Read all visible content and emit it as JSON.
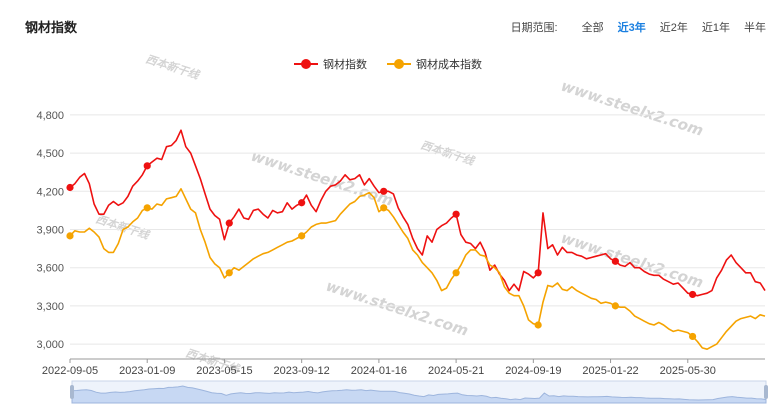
{
  "header": {
    "title": "钢材指数",
    "range_label": "日期范围:",
    "range_options": [
      "全部",
      "近3年",
      "近2年",
      "近1年",
      "半年"
    ],
    "active_range": "近3年"
  },
  "watermarks": {
    "site": "www.steelx2.com",
    "brand": "西本新干线"
  },
  "chart_data": {
    "type": "line",
    "xlabels": [
      "2022-09-05",
      "2023-01-09",
      "2023-05-15",
      "2023-09-12",
      "2024-01-16",
      "2024-05-21",
      "2024-09-19",
      "2025-01-22",
      "2025-05-30"
    ],
    "yticks": [
      3000,
      3300,
      3600,
      3900,
      4200,
      4500,
      4800
    ],
    "ylim": [
      2930,
      4870
    ],
    "grid": true,
    "legend_position": "top-center",
    "series": [
      {
        "name": "钢材指数",
        "color": "#ee1111",
        "markers": [
          0,
          16,
          33,
          48,
          65,
          80,
          97,
          113,
          129
        ],
        "values": [
          4230,
          4260,
          4310,
          4340,
          4260,
          4100,
          4020,
          4020,
          4090,
          4120,
          4090,
          4110,
          4160,
          4240,
          4280,
          4330,
          4400,
          4430,
          4460,
          4450,
          4550,
          4560,
          4600,
          4680,
          4550,
          4500,
          4400,
          4300,
          4180,
          4060,
          4010,
          3980,
          3820,
          3950,
          4000,
          4060,
          3990,
          3980,
          4050,
          4060,
          4020,
          3990,
          4050,
          4030,
          4040,
          4110,
          4060,
          4090,
          4110,
          4170,
          4090,
          4040,
          4130,
          4200,
          4240,
          4250,
          4280,
          4330,
          4290,
          4300,
          4330,
          4250,
          4300,
          4240,
          4190,
          4200,
          4200,
          4180,
          4070,
          4000,
          3940,
          3830,
          3750,
          3700,
          3850,
          3800,
          3900,
          3930,
          3950,
          3990,
          4020,
          3860,
          3800,
          3790,
          3750,
          3800,
          3720,
          3580,
          3620,
          3550,
          3500,
          3420,
          3470,
          3420,
          3570,
          3550,
          3520,
          3560,
          4030,
          3750,
          3780,
          3700,
          3760,
          3720,
          3720,
          3700,
          3690,
          3670,
          3680,
          3690,
          3700,
          3710,
          3670,
          3650,
          3620,
          3610,
          3640,
          3600,
          3600,
          3570,
          3550,
          3540,
          3540,
          3510,
          3490,
          3470,
          3480,
          3440,
          3400,
          3390,
          3380,
          3390,
          3400,
          3420,
          3520,
          3580,
          3660,
          3700,
          3640,
          3600,
          3560,
          3560,
          3490,
          3480,
          3420
        ]
      },
      {
        "name": "钢材成本指数",
        "color": "#f5a300",
        "markers": [
          0,
          16,
          33,
          48,
          65,
          80,
          97,
          113,
          129
        ],
        "values": [
          3850,
          3890,
          3880,
          3880,
          3910,
          3880,
          3840,
          3750,
          3720,
          3720,
          3790,
          3900,
          3920,
          3960,
          3990,
          4050,
          4070,
          4060,
          4100,
          4090,
          4140,
          4150,
          4160,
          4220,
          4140,
          4060,
          4030,
          3900,
          3800,
          3680,
          3630,
          3600,
          3520,
          3560,
          3600,
          3580,
          3610,
          3640,
          3670,
          3690,
          3710,
          3720,
          3740,
          3760,
          3780,
          3800,
          3810,
          3830,
          3850,
          3880,
          3920,
          3940,
          3950,
          3950,
          3960,
          3970,
          4020,
          4060,
          4100,
          4120,
          4160,
          4170,
          4190,
          4150,
          4040,
          4070,
          4050,
          4000,
          3940,
          3880,
          3830,
          3740,
          3700,
          3640,
          3600,
          3560,
          3500,
          3420,
          3440,
          3510,
          3560,
          3620,
          3700,
          3740,
          3740,
          3700,
          3690,
          3620,
          3600,
          3560,
          3450,
          3400,
          3380,
          3380,
          3300,
          3190,
          3160,
          3150,
          3330,
          3460,
          3450,
          3480,
          3430,
          3420,
          3450,
          3420,
          3400,
          3380,
          3360,
          3350,
          3320,
          3330,
          3320,
          3300,
          3290,
          3290,
          3260,
          3220,
          3200,
          3180,
          3160,
          3150,
          3170,
          3150,
          3120,
          3100,
          3110,
          3100,
          3090,
          3060,
          3020,
          2970,
          2960,
          2980,
          3000,
          3050,
          3100,
          3140,
          3180,
          3200,
          3210,
          3220,
          3200,
          3230,
          3220
        ]
      }
    ]
  }
}
